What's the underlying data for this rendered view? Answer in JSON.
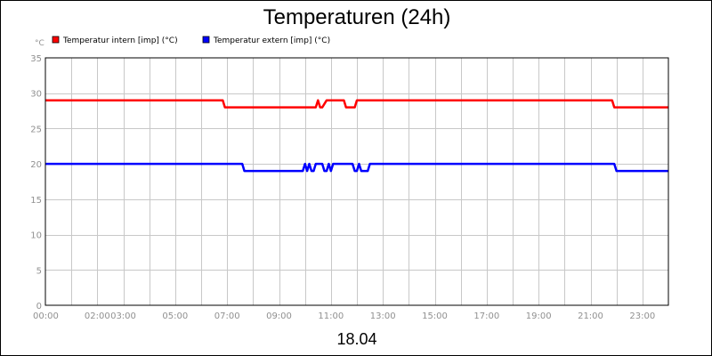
{
  "chart_data": {
    "type": "line",
    "title": "Temperaturen (24h)",
    "ylabel": "°C",
    "date_label": "18.04",
    "ylim": [
      0,
      35
    ],
    "y_ticks": [
      0,
      5,
      10,
      15,
      20,
      25,
      30,
      35
    ],
    "xlim": [
      "00:00",
      "24:00"
    ],
    "x_tick_labels": [
      {
        "t": "00:00",
        "label": "00:00"
      },
      {
        "t": "02:00",
        "label": "02:00"
      },
      {
        "t": "03:00",
        "label": "03:00"
      },
      {
        "t": "05:00",
        "label": "05:00"
      },
      {
        "t": "07:00",
        "label": "07:00"
      },
      {
        "t": "09:00",
        "label": "09:00"
      },
      {
        "t": "11:00",
        "label": "11:00"
      },
      {
        "t": "13:00",
        "label": "13:00"
      },
      {
        "t": "15:00",
        "label": "15:00"
      },
      {
        "t": "17:00",
        "label": "17:00"
      },
      {
        "t": "19:00",
        "label": "19:00"
      },
      {
        "t": "21:00",
        "label": "21:00"
      },
      {
        "t": "23:00",
        "label": "23:00"
      }
    ],
    "grid": true,
    "legend_position": "top-left",
    "series": [
      {
        "name": "Temperatur intern [imp] (°C)",
        "color": "#ff0000",
        "points": [
          [
            "00:00",
            29
          ],
          [
            "06:50",
            29
          ],
          [
            "06:55",
            28
          ],
          [
            "10:25",
            28
          ],
          [
            "10:30",
            29
          ],
          [
            "10:35",
            28
          ],
          [
            "10:40",
            28
          ],
          [
            "10:50",
            29
          ],
          [
            "11:30",
            29
          ],
          [
            "11:35",
            28
          ],
          [
            "11:55",
            28
          ],
          [
            "12:00",
            29
          ],
          [
            "21:50",
            29
          ],
          [
            "21:55",
            28
          ],
          [
            "24:00",
            28
          ]
        ]
      },
      {
        "name": "Temperatur extern [imp] (°C)",
        "color": "#0000ff",
        "points": [
          [
            "00:00",
            20
          ],
          [
            "07:35",
            20
          ],
          [
            "07:40",
            19
          ],
          [
            "09:55",
            19
          ],
          [
            "10:00",
            20
          ],
          [
            "10:05",
            19
          ],
          [
            "10:10",
            20
          ],
          [
            "10:15",
            19
          ],
          [
            "10:20",
            19
          ],
          [
            "10:25",
            20
          ],
          [
            "10:40",
            20
          ],
          [
            "10:45",
            19
          ],
          [
            "10:50",
            19
          ],
          [
            "10:55",
            20
          ],
          [
            "11:00",
            19
          ],
          [
            "11:05",
            20
          ],
          [
            "11:50",
            20
          ],
          [
            "11:55",
            19
          ],
          [
            "12:00",
            19
          ],
          [
            "12:05",
            20
          ],
          [
            "12:10",
            19
          ],
          [
            "12:25",
            19
          ],
          [
            "12:30",
            20
          ],
          [
            "21:55",
            20
          ],
          [
            "22:00",
            19
          ],
          [
            "24:00",
            19
          ]
        ]
      }
    ]
  }
}
